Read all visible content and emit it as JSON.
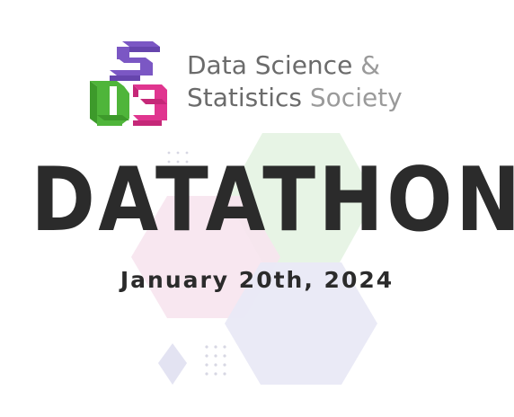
{
  "org": {
    "name_line1_main": "Data Science",
    "name_line1_amp": " &",
    "name_line2_main": "Statistics",
    "name_line2_light": " Society"
  },
  "event": {
    "title": "DATATHON",
    "date": "January 20th, 2024"
  },
  "colors": {
    "logo_purple": "#7b57c4",
    "logo_green": "#4fb53a",
    "logo_pink": "#e0358f",
    "text_dark": "#2b2b2b",
    "text_gray": "#6b6b6b",
    "text_light_gray": "#9a9a9a",
    "hex_green": "#e4f3e2",
    "hex_pink": "#f7e4ee",
    "hex_lavender": "#e9e9f5"
  }
}
